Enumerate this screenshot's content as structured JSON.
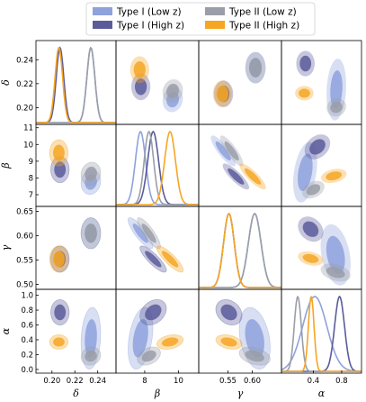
{
  "chart_data": {
    "type": "corner",
    "parameters": [
      {
        "key": "delta",
        "label": "δ",
        "range": [
          0.186,
          0.256
        ],
        "ticks": [
          0.2,
          0.22,
          0.24
        ],
        "tick_labels": [
          "0.20",
          "0.22",
          "0.24"
        ]
      },
      {
        "key": "beta",
        "label": "β",
        "range": [
          6.3,
          11.2
        ],
        "ticks": [
          7,
          8,
          9,
          10,
          11
        ],
        "tick_labels": [
          "7",
          "8",
          "9",
          "10",
          "11"
        ]
      },
      {
        "key": "gamma",
        "label": "γ",
        "range": [
          0.49,
          0.66
        ],
        "ticks": [
          0.5,
          0.55,
          0.6,
          0.65
        ],
        "tick_labels": [
          "0.50",
          "0.55",
          "0.60",
          "0.65"
        ]
      },
      {
        "key": "alpha",
        "label": "α",
        "range": [
          -0.05,
          1.08
        ],
        "ticks": [
          0.0,
          0.2,
          0.4,
          0.6,
          0.8,
          1.0
        ],
        "tick_labels": [
          "0.0",
          "0.2",
          "0.4",
          "0.6",
          "0.8",
          "1.0"
        ]
      }
    ],
    "bottom_ticks": [
      {
        "values": [
          0.2,
          0.22,
          0.24
        ],
        "labels": [
          "0.20",
          "0.22",
          "0.24"
        ]
      },
      {
        "values": [
          8,
          10
        ],
        "labels": [
          "8",
          "10"
        ]
      },
      {
        "values": [
          0.55,
          0.6
        ],
        "labels": [
          "0.55",
          "0.60"
        ]
      },
      {
        "values": [
          0.4,
          0.8
        ],
        "labels": [
          "0.4",
          "0.8"
        ]
      }
    ],
    "series": [
      {
        "name": "Type I (Low z)",
        "color": "#8ea2dc",
        "mean": {
          "delta": 0.234,
          "beta": 7.75,
          "gamma": 0.605,
          "alpha": 0.42
        },
        "sd": {
          "delta": 0.0035,
          "beta": 0.3,
          "gamma": 0.013,
          "alpha": 0.17
        },
        "corr": {
          "delta-beta": 0.1,
          "delta-gamma": 0.0,
          "delta-alpha": 0.15,
          "beta-gamma": -0.85,
          "beta-alpha": 0.35,
          "gamma-alpha": -0.3
        }
      },
      {
        "name": "Type I (High z)",
        "color": "#5b5b9b",
        "mean": {
          "delta": 0.207,
          "beta": 8.5,
          "gamma": 0.552,
          "alpha": 0.77
        },
        "sd": {
          "delta": 0.0033,
          "beta": 0.32,
          "gamma": 0.011,
          "alpha": 0.07
        },
        "corr": {
          "delta-beta": 0.0,
          "delta-gamma": 0.0,
          "delta-alpha": 0.0,
          "beta-gamma": -0.85,
          "beta-alpha": 0.3,
          "gamma-alpha": -0.25
        }
      },
      {
        "name": "Type II (Low z)",
        "color": "#9a9ea8",
        "mean": {
          "delta": 0.234,
          "beta": 8.25,
          "gamma": 0.605,
          "alpha": 0.18
        },
        "sd": {
          "delta": 0.0035,
          "beta": 0.28,
          "gamma": 0.013,
          "alpha": 0.05
        },
        "corr": {
          "delta-beta": 0.1,
          "delta-gamma": 0.0,
          "delta-alpha": 0.1,
          "beta-gamma": -0.85,
          "beta-alpha": 0.35,
          "gamma-alpha": -0.35
        }
      },
      {
        "name": "Type II (High z)",
        "color": "#f5a623",
        "mean": {
          "delta": 0.206,
          "beta": 9.5,
          "gamma": 0.552,
          "alpha": 0.37
        },
        "sd": {
          "delta": 0.0033,
          "beta": 0.32,
          "gamma": 0.011,
          "alpha": 0.04
        },
        "corr": {
          "delta-beta": 0.0,
          "delta-gamma": 0.0,
          "delta-alpha": 0.0,
          "beta-gamma": -0.85,
          "beta-alpha": 0.3,
          "gamma-alpha": -0.3
        }
      }
    ],
    "legend": {
      "location": "top",
      "columns": 2
    },
    "grid": false
  }
}
